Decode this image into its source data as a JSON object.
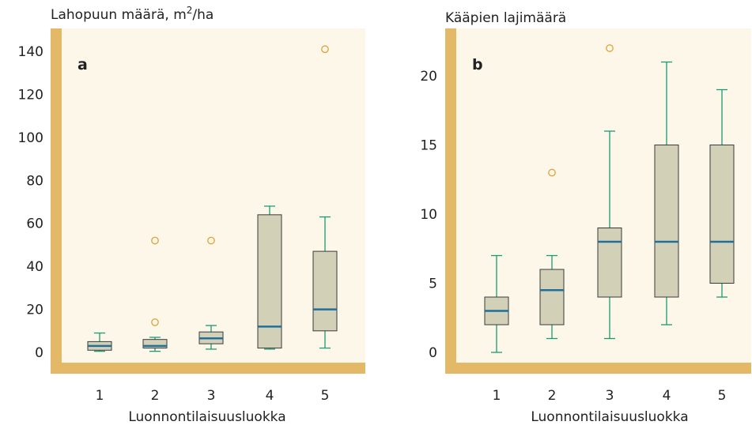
{
  "colors": {
    "frame": "#e3b866",
    "plot_bg": "#fdf7ea",
    "box_fill": "#d3d0b8",
    "box_edge": "#3a3a3a",
    "median": "#1f6f9a",
    "whisker": "#1c9a76",
    "outlier": "#e0a23a"
  },
  "chart_data": [
    {
      "type": "boxplot",
      "panel_label": "a",
      "ylabel": "Lahopuun määrä, m²/ha",
      "ylabel_main": "Lahopuun määrä, m",
      "ylabel_sup": "2",
      "ylabel_tail": "/ha",
      "xlabel": "Luonnontilaisuusluokka",
      "categories": [
        "1",
        "2",
        "3",
        "4",
        "5"
      ],
      "ylim": [
        -5,
        145
      ],
      "yticks": [
        0,
        20,
        40,
        60,
        80,
        100,
        120,
        140
      ],
      "ytick_labels": [
        "0",
        "20",
        "40",
        "60",
        "80",
        "100",
        "120",
        "140"
      ],
      "grid": false,
      "boxes": [
        {
          "category": "1",
          "whisker_low": 0.5,
          "q1": 1,
          "median": 3,
          "q3": 5,
          "whisker_high": 9,
          "outliers": []
        },
        {
          "category": "2",
          "whisker_low": 0.5,
          "q1": 2,
          "median": 3,
          "q3": 6,
          "whisker_high": 7,
          "outliers": [
            14,
            52
          ]
        },
        {
          "category": "3",
          "whisker_low": 1.5,
          "q1": 4,
          "median": 6.5,
          "q3": 9.5,
          "whisker_high": 12.5,
          "outliers": [
            52
          ]
        },
        {
          "category": "4",
          "whisker_low": 1.5,
          "q1": 2,
          "median": 12,
          "q3": 64,
          "whisker_high": 68,
          "outliers": []
        },
        {
          "category": "5",
          "whisker_low": 2,
          "q1": 10,
          "median": 20,
          "q3": 47,
          "whisker_high": 63,
          "outliers": [
            141
          ]
        }
      ]
    },
    {
      "type": "boxplot",
      "panel_label": "b",
      "ylabel": "Kääpien lajimäärä",
      "ylabel_main": "Kääpien lajimäärä",
      "ylabel_sup": "",
      "ylabel_tail": "",
      "xlabel": "Luonnontilaisuusluokka",
      "categories": [
        "1",
        "2",
        "3",
        "4",
        "5"
      ],
      "ylim": [
        -1,
        23
      ],
      "yticks": [
        0,
        5,
        10,
        15,
        20
      ],
      "ytick_labels": [
        "0",
        "5",
        "10",
        "15",
        "20"
      ],
      "grid": false,
      "boxes": [
        {
          "category": "1",
          "whisker_low": 0,
          "q1": 2,
          "median": 3,
          "q3": 4,
          "whisker_high": 7,
          "outliers": []
        },
        {
          "category": "2",
          "whisker_low": 1,
          "q1": 2,
          "median": 4.5,
          "q3": 6,
          "whisker_high": 7,
          "outliers": [
            13
          ]
        },
        {
          "category": "3",
          "whisker_low": 1,
          "q1": 4,
          "median": 8,
          "q3": 9,
          "whisker_high": 16,
          "outliers": [
            22
          ]
        },
        {
          "category": "4",
          "whisker_low": 2,
          "q1": 4,
          "median": 8,
          "q3": 15,
          "whisker_high": 21,
          "outliers": []
        },
        {
          "category": "5",
          "whisker_low": 4,
          "q1": 5,
          "median": 8,
          "q3": 15,
          "whisker_high": 19,
          "outliers": []
        }
      ]
    }
  ]
}
